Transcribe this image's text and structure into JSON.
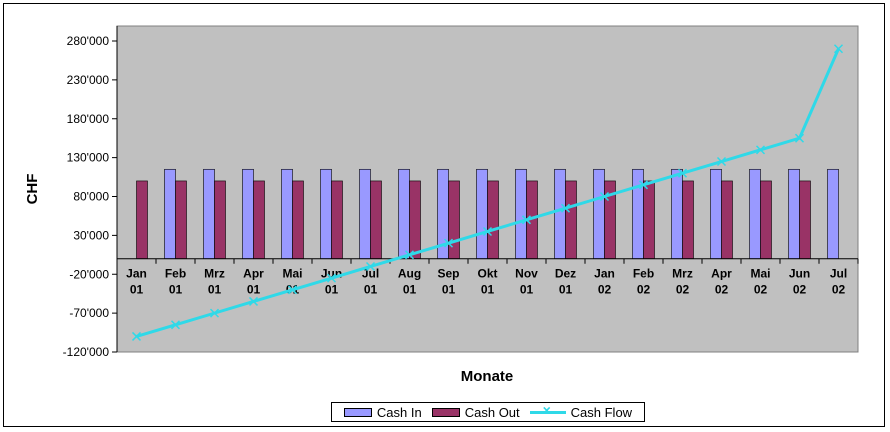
{
  "chart_data": {
    "type": "bar+line",
    "title": "",
    "xlabel": "Monate",
    "ylabel": "CHF",
    "ylim": [
      -120000,
      280000
    ],
    "yticks": [
      280000,
      230000,
      180000,
      130000,
      80000,
      30000,
      -20000,
      -70000,
      -120000
    ],
    "ytick_labels": [
      "280'000",
      "230'000",
      "180'000",
      "130'000",
      "80'000",
      "30'000",
      "-20'000",
      "-70'000",
      "-120'000"
    ],
    "categories": [
      [
        "Jan",
        "01"
      ],
      [
        "Feb",
        "01"
      ],
      [
        "Mrz",
        "01"
      ],
      [
        "Apr",
        "01"
      ],
      [
        "Mai",
        "01"
      ],
      [
        "Jun",
        "01"
      ],
      [
        "Jul",
        "01"
      ],
      [
        "Aug",
        "01"
      ],
      [
        "Sep",
        "01"
      ],
      [
        "Okt",
        "01"
      ],
      [
        "Nov",
        "01"
      ],
      [
        "Dez",
        "01"
      ],
      [
        "Jan",
        "02"
      ],
      [
        "Feb",
        "02"
      ],
      [
        "Mrz",
        "02"
      ],
      [
        "Apr",
        "02"
      ],
      [
        "Mai",
        "02"
      ],
      [
        "Jun",
        "02"
      ],
      [
        "Jul",
        "02"
      ]
    ],
    "grid": false,
    "legend_position": "bottom",
    "series": [
      {
        "name": "Cash In",
        "type": "bar",
        "color": "#9999ff",
        "values": [
          0,
          115000,
          115000,
          115000,
          115000,
          115000,
          115000,
          115000,
          115000,
          115000,
          115000,
          115000,
          115000,
          115000,
          115000,
          115000,
          115000,
          115000,
          115000
        ]
      },
      {
        "name": "Cash Out",
        "type": "bar",
        "color": "#993366",
        "values": [
          100000,
          100000,
          100000,
          100000,
          100000,
          100000,
          100000,
          100000,
          100000,
          100000,
          100000,
          100000,
          100000,
          100000,
          100000,
          100000,
          100000,
          100000,
          0
        ]
      },
      {
        "name": "Cash Flow",
        "type": "line",
        "color": "#2fd9e8",
        "values": [
          -100000,
          -85000,
          -70000,
          -55000,
          -40000,
          -25000,
          -10000,
          5000,
          20000,
          35000,
          50000,
          65000,
          80000,
          95000,
          110000,
          125000,
          140000,
          155000,
          270000
        ]
      }
    ],
    "colors": {
      "plot_background": "#c0c0c0"
    }
  }
}
